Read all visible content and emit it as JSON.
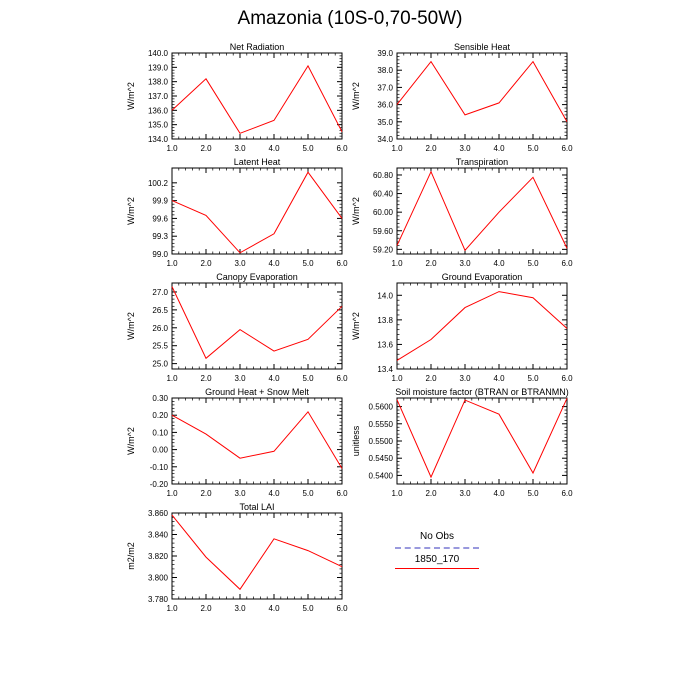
{
  "figure": {
    "title": "Amazonia (10S-0,70-50W)"
  },
  "legend": {
    "entries": [
      {
        "name": "No Obs",
        "style": "dashed",
        "color": "#9999dd"
      },
      {
        "name": "1850_170",
        "style": "solid",
        "color": "#ff0000"
      }
    ]
  },
  "colors": {
    "series": "#ff0000",
    "axis": "#000000"
  },
  "chart_data": [
    {
      "type": "line",
      "title": "Net Radiation",
      "ylabel": "W/m^2",
      "x": [
        1.0,
        2.0,
        3.0,
        4.0,
        5.0,
        6.0
      ],
      "xlim": [
        1.0,
        6.0
      ],
      "xticks": [
        "1.0",
        "2.0",
        "3.0",
        "4.0",
        "5.0",
        "6.0"
      ],
      "ylim": [
        134.0,
        140.0
      ],
      "yticks": [
        "134.0",
        "135.0",
        "136.0",
        "137.0",
        "138.0",
        "139.0",
        "140.0"
      ],
      "series": [
        {
          "name": "1850_170",
          "values": [
            136.0,
            138.2,
            134.4,
            135.3,
            139.1,
            134.5
          ]
        }
      ],
      "grid": false
    },
    {
      "type": "line",
      "title": "Sensible Heat",
      "ylabel": "W/m^2",
      "x": [
        1.0,
        2.0,
        3.0,
        4.0,
        5.0,
        6.0
      ],
      "xlim": [
        1.0,
        6.0
      ],
      "xticks": [
        "1.0",
        "2.0",
        "3.0",
        "4.0",
        "5.0",
        "6.0"
      ],
      "ylim": [
        34.0,
        39.0
      ],
      "yticks": [
        "34.0",
        "35.0",
        "36.0",
        "37.0",
        "38.0",
        "39.0"
      ],
      "series": [
        {
          "name": "1850_170",
          "values": [
            36.0,
            38.5,
            35.4,
            36.1,
            38.5,
            35.0
          ]
        }
      ],
      "grid": false
    },
    {
      "type": "line",
      "title": "Latent Heat",
      "ylabel": "W/m^2",
      "x": [
        1.0,
        2.0,
        3.0,
        4.0,
        5.0,
        6.0
      ],
      "xlim": [
        1.0,
        6.0
      ],
      "xticks": [
        "1.0",
        "2.0",
        "3.0",
        "4.0",
        "5.0",
        "6.0"
      ],
      "ylim": [
        99.0,
        100.45
      ],
      "yticks": [
        "99.0",
        "99.3",
        "99.6",
        "99.9",
        "100.2"
      ],
      "ytickvals": [
        99.0,
        99.3,
        99.6,
        99.9,
        100.2
      ],
      "series": [
        {
          "name": "1850_170",
          "values": [
            99.9,
            99.65,
            99.02,
            99.34,
            100.38,
            99.6
          ]
        }
      ],
      "grid": false
    },
    {
      "type": "line",
      "title": "Transpiration",
      "ylabel": "W/m^2",
      "x": [
        1.0,
        2.0,
        3.0,
        4.0,
        5.0,
        6.0
      ],
      "xlim": [
        1.0,
        6.0
      ],
      "xticks": [
        "1.0",
        "2.0",
        "3.0",
        "4.0",
        "5.0",
        "6.0"
      ],
      "ylim": [
        59.1,
        60.95
      ],
      "yticks": [
        "59.20",
        "59.60",
        "60.00",
        "60.40",
        "60.80"
      ],
      "ytickvals": [
        59.2,
        59.6,
        60.0,
        60.4,
        60.8
      ],
      "series": [
        {
          "name": "1850_170",
          "values": [
            59.28,
            60.87,
            59.18,
            60.0,
            60.75,
            59.22
          ]
        }
      ],
      "grid": false
    },
    {
      "type": "line",
      "title": "Canopy Evaporation",
      "ylabel": "W/m^2",
      "x": [
        1.0,
        2.0,
        3.0,
        4.0,
        5.0,
        6.0
      ],
      "xlim": [
        1.0,
        6.0
      ],
      "xticks": [
        "1.0",
        "2.0",
        "3.0",
        "4.0",
        "5.0",
        "6.0"
      ],
      "ylim": [
        24.85,
        27.25
      ],
      "yticks": [
        "25.0",
        "25.5",
        "26.0",
        "26.5",
        "27.0"
      ],
      "ytickvals": [
        25.0,
        25.5,
        26.0,
        26.5,
        27.0
      ],
      "series": [
        {
          "name": "1850_170",
          "values": [
            27.15,
            25.15,
            25.95,
            25.35,
            25.68,
            26.6
          ]
        }
      ],
      "grid": false
    },
    {
      "type": "line",
      "title": "Ground Evaporation",
      "ylabel": "W/m^2",
      "x": [
        1.0,
        2.0,
        3.0,
        4.0,
        5.0,
        6.0
      ],
      "xlim": [
        1.0,
        6.0
      ],
      "xticks": [
        "1.0",
        "2.0",
        "3.0",
        "4.0",
        "5.0",
        "6.0"
      ],
      "ylim": [
        13.4,
        14.1
      ],
      "yticks": [
        "13.4",
        "13.6",
        "13.8",
        "14.0"
      ],
      "ytickvals": [
        13.4,
        13.6,
        13.8,
        14.0
      ],
      "series": [
        {
          "name": "1850_170",
          "values": [
            13.47,
            13.64,
            13.9,
            14.03,
            13.98,
            13.73
          ]
        }
      ],
      "grid": false
    },
    {
      "type": "line",
      "title": "Ground Heat + Snow Melt",
      "ylabel": "W/m^2",
      "x": [
        1.0,
        2.0,
        3.0,
        4.0,
        5.0,
        6.0
      ],
      "xlim": [
        1.0,
        6.0
      ],
      "xticks": [
        "1.0",
        "2.0",
        "3.0",
        "4.0",
        "5.0",
        "6.0"
      ],
      "ylim": [
        -0.2,
        0.3
      ],
      "yticks": [
        "-0.20",
        "-0.10",
        "0.00",
        "0.10",
        "0.20",
        "0.30"
      ],
      "ytickvals": [
        -0.2,
        -0.1,
        0.0,
        0.1,
        0.2,
        0.3
      ],
      "series": [
        {
          "name": "1850_170",
          "values": [
            0.2,
            0.09,
            -0.05,
            -0.01,
            0.22,
            -0.11
          ]
        }
      ],
      "grid": false
    },
    {
      "type": "line",
      "title": "Soil moisture factor (BTRAN or BTRANMN)",
      "ylabel": "unitless",
      "x": [
        1.0,
        2.0,
        3.0,
        4.0,
        5.0,
        6.0
      ],
      "xlim": [
        1.0,
        6.0
      ],
      "xticks": [
        "1.0",
        "2.0",
        "3.0",
        "4.0",
        "5.0",
        "6.0"
      ],
      "ylim": [
        0.5375,
        0.5625
      ],
      "yticks": [
        "0.5400",
        "0.5450",
        "0.5500",
        "0.5550",
        "0.5600"
      ],
      "ytickvals": [
        0.54,
        0.545,
        0.55,
        0.555,
        0.56
      ],
      "series": [
        {
          "name": "1850_170",
          "values": [
            0.562,
            0.5395,
            0.5619,
            0.5578,
            0.5407,
            0.5624
          ]
        }
      ],
      "grid": false
    },
    {
      "type": "line",
      "title": "Total LAI",
      "ylabel": "m2/m2",
      "x": [
        1.0,
        2.0,
        3.0,
        4.0,
        5.0,
        6.0
      ],
      "xlim": [
        1.0,
        6.0
      ],
      "xticks": [
        "1.0",
        "2.0",
        "3.0",
        "4.0",
        "5.0",
        "6.0"
      ],
      "ylim": [
        3.78,
        3.86
      ],
      "yticks": [
        "3.780",
        "3.800",
        "3.820",
        "3.840",
        "3.860"
      ],
      "ytickvals": [
        3.78,
        3.8,
        3.82,
        3.84,
        3.86
      ],
      "series": [
        {
          "name": "1850_170",
          "values": [
            3.858,
            3.819,
            3.789,
            3.836,
            3.825,
            3.81
          ]
        }
      ],
      "grid": false
    }
  ]
}
